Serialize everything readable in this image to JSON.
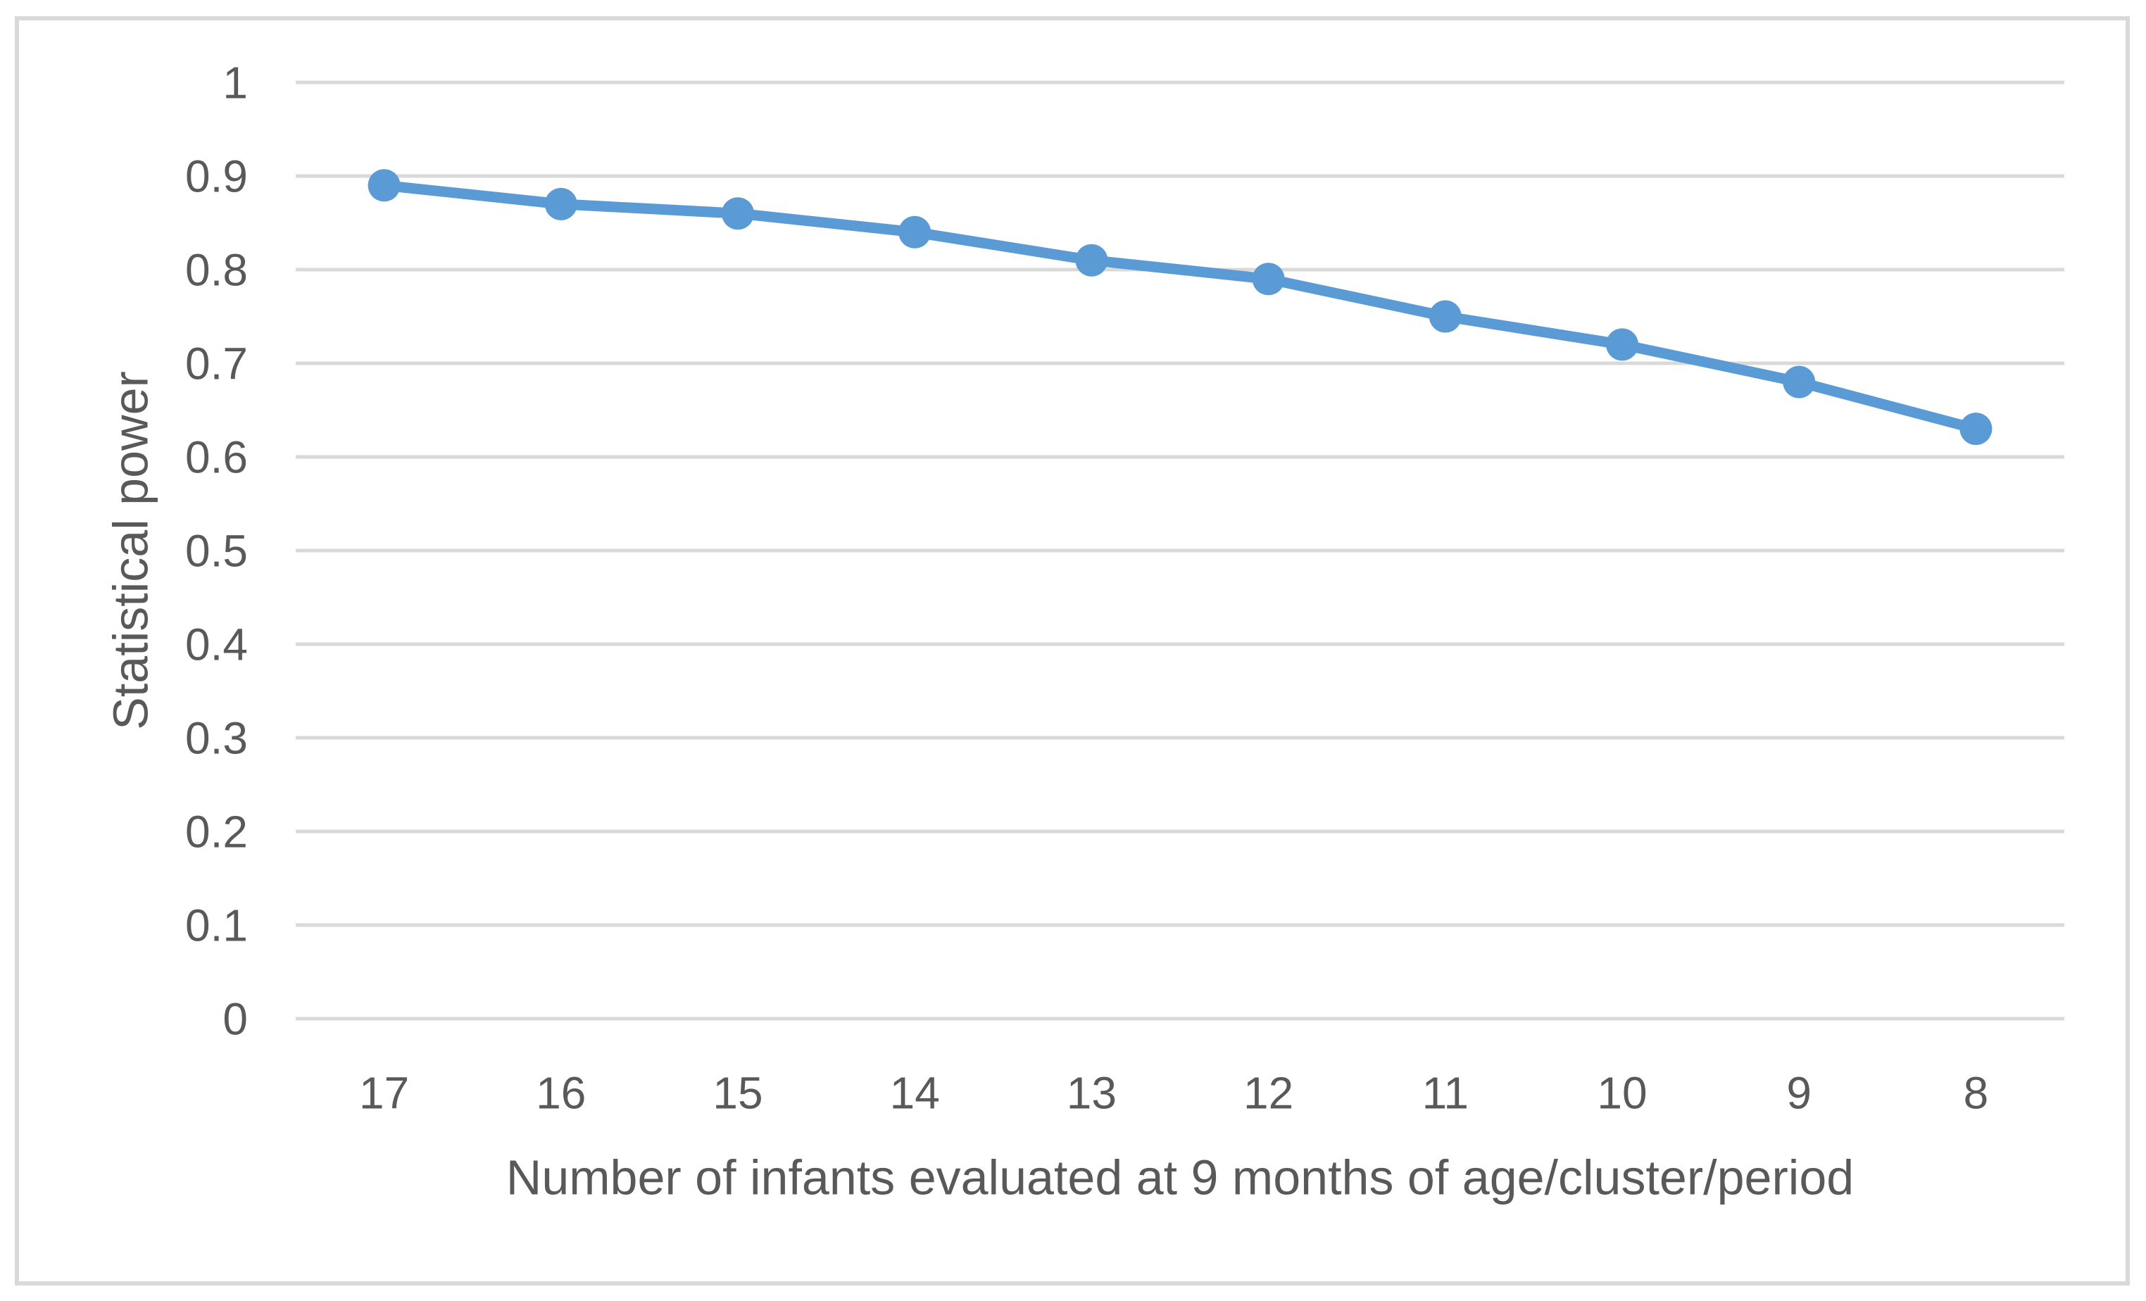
{
  "figure": {
    "background": "#FFFFFF"
  },
  "chart_data": {
    "type": "line",
    "categories": [
      "17",
      "16",
      "15",
      "14",
      "13",
      "12",
      "11",
      "10",
      "9",
      "8"
    ],
    "values": [
      0.89,
      0.87,
      0.86,
      0.84,
      0.81,
      0.79,
      0.75,
      0.72,
      0.68,
      0.63
    ],
    "xlabel": "Number of infants evaluated at 9 months of age/cluster/period",
    "ylabel": "Statistical power",
    "ylim": [
      0,
      1
    ],
    "ytick_values": [
      0,
      0.1,
      0.2,
      0.3,
      0.4,
      0.5,
      0.6,
      0.7,
      0.8,
      0.9,
      1
    ],
    "ytick_labels": [
      "0",
      "0.1",
      "0.2",
      "0.3",
      "0.4",
      "0.5",
      "0.6",
      "0.7",
      "0.8",
      "0.9",
      "1"
    ],
    "grid": "horizontal",
    "legend": "none",
    "marker": "circle",
    "colors": {
      "series": "#5B9BD5",
      "gridline": "#D9D9D9",
      "axis_text": "#595959",
      "frame_border": "#D9D9D9"
    }
  }
}
